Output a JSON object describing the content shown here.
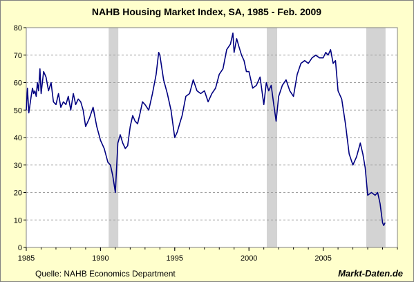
{
  "chart_data": {
    "type": "line",
    "title": "NAHB Housing Market Index, SA, 1985 - Feb. 2009",
    "xlim": [
      1985,
      2010
    ],
    "ylim": [
      0,
      80
    ],
    "y_ticks": [
      "0",
      "10",
      "20",
      "30",
      "40",
      "50",
      "60",
      "70",
      "80"
    ],
    "x_ticks": [
      "1985",
      "1990",
      "1995",
      "2000",
      "2005"
    ],
    "grid": "horizontal dashed",
    "line_color": "#000080",
    "recession_color": "#d3d3d3",
    "recessions": [
      [
        1990.55,
        1991.2
      ],
      [
        2001.2,
        2001.9
      ],
      [
        2007.9,
        2009.2
      ]
    ],
    "series": [
      {
        "x": [
          1985.0,
          1985.08,
          1985.17,
          1985.25,
          1985.33,
          1985.42,
          1985.5,
          1985.58,
          1985.67,
          1985.75,
          1985.83,
          1985.92,
          1986.0,
          1986.17,
          1986.33,
          1986.5,
          1986.67,
          1986.83,
          1987.0,
          1987.17,
          1987.33,
          1987.5,
          1987.67,
          1987.83,
          1988.0,
          1988.17,
          1988.33,
          1988.5,
          1988.67,
          1988.83,
          1989.0,
          1989.25,
          1989.5,
          1989.75,
          1990.0,
          1990.25,
          1990.5,
          1990.67,
          1990.83,
          1991.0,
          1991.17,
          1991.33,
          1991.5,
          1991.67,
          1991.83,
          1992.0,
          1992.17,
          1992.33,
          1992.5,
          1992.67,
          1992.83,
          1993.0,
          1993.25,
          1993.5,
          1993.75,
          1993.92,
          1994.0,
          1994.25,
          1994.5,
          1994.75,
          1995.0,
          1995.17,
          1995.33,
          1995.5,
          1995.75,
          1996.0,
          1996.25,
          1996.5,
          1996.75,
          1997.0,
          1997.25,
          1997.5,
          1997.75,
          1998.0,
          1998.25,
          1998.5,
          1998.75,
          1998.92,
          1999.0,
          1999.17,
          1999.33,
          1999.5,
          1999.67,
          1999.83,
          2000.0,
          2000.25,
          2000.5,
          2000.75,
          2001.0,
          2001.17,
          2001.33,
          2001.5,
          2001.67,
          2001.83,
          2002.0,
          2002.25,
          2002.5,
          2002.75,
          2003.0,
          2003.25,
          2003.5,
          2003.75,
          2004.0,
          2004.25,
          2004.5,
          2004.75,
          2005.0,
          2005.17,
          2005.33,
          2005.5,
          2005.67,
          2005.83,
          2006.0,
          2006.25,
          2006.5,
          2006.75,
          2007.0,
          2007.25,
          2007.5,
          2007.67,
          2007.83,
          2008.0,
          2008.25,
          2008.5,
          2008.67,
          2008.83,
          2009.0,
          2009.08,
          2009.17
        ],
        "y": [
          50,
          58,
          49,
          52,
          55,
          58,
          56,
          57,
          55,
          60,
          57,
          65,
          56,
          64,
          62,
          57,
          60,
          53,
          52,
          56,
          51,
          53,
          52,
          55,
          50,
          56,
          52,
          54,
          53,
          50,
          44,
          47,
          51,
          44,
          39,
          36,
          31,
          30,
          26,
          20,
          38,
          41,
          38,
          36,
          37,
          44,
          48,
          46,
          45,
          49,
          53,
          52,
          50,
          56,
          63,
          71,
          70,
          61,
          56,
          50,
          40,
          42,
          45,
          48,
          55,
          56,
          61,
          57,
          56,
          57,
          53,
          56,
          58,
          63,
          65,
          72,
          74,
          78,
          71,
          76,
          73,
          70,
          68,
          64,
          64,
          58,
          59,
          62,
          52,
          60,
          57,
          59,
          52,
          46,
          55,
          59,
          61,
          57,
          55,
          63,
          67,
          68,
          67,
          69,
          70,
          69,
          69,
          71,
          70,
          72,
          67,
          68,
          57,
          54,
          45,
          34,
          30,
          33,
          38,
          34,
          29,
          19,
          20,
          19,
          20,
          16,
          9,
          8,
          9
        ]
      }
    ],
    "footer_source": "Quelle: NAHB Economics Department",
    "footer_brand": "Markt-Daten.de"
  }
}
